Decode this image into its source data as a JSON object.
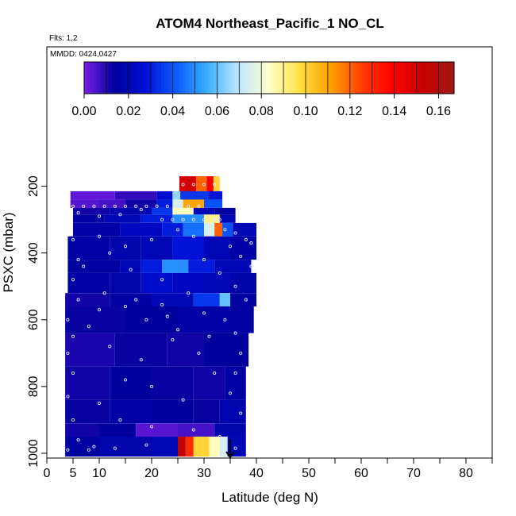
{
  "chart_data": {
    "type": "heatmap",
    "title": "ATOM4 Northeast_Pacific_1 NO_CL",
    "notes": {
      "flights": "Flts: 1,2",
      "dates": "MMDD: 0424,0427"
    },
    "xlabel": "Latitude (deg N)",
    "ylabel": "PSXC (mbar)",
    "xlim": [
      0,
      85
    ],
    "ylim": [
      1010,
      50
    ],
    "y_reversed": true,
    "x_ticks": [
      0,
      5,
      10,
      20,
      30,
      40,
      50,
      60,
      70,
      80
    ],
    "x_tick_labels": [
      "0",
      "5",
      "10",
      "20",
      "30",
      "40",
      "50",
      "60",
      "70",
      "80"
    ],
    "x_minor_ticks": [
      15,
      25,
      35,
      45,
      55,
      65,
      75,
      85
    ],
    "y_ticks": [
      200,
      400,
      600,
      800,
      1000
    ],
    "y_tick_labels": [
      "200",
      "400",
      "600",
      "800",
      "1000"
    ],
    "grid": false,
    "legend": "colorbar-top",
    "colorbar": {
      "min": 0,
      "max": 0.167,
      "ticks": [
        0,
        0.02,
        0.04,
        0.06,
        0.08,
        0.1,
        0.12,
        0.14,
        0.16
      ],
      "tick_labels": [
        "0.00",
        "0.02",
        "0.04",
        "0.06",
        "0.08",
        "0.10",
        "0.12",
        "0.14",
        "0.16"
      ],
      "colors": [
        "#7a1ee6",
        "#00009c",
        "#0010d8",
        "#0a5cff",
        "#3ab0ff",
        "#bfe6ff",
        "#ffffcc",
        "#ffe040",
        "#ffa000",
        "#ff4000",
        "#ff0000",
        "#c80000",
        "#a01818"
      ]
    },
    "bands": [
      {
        "p_top": 170,
        "p_bot": 240,
        "cells": [
          [
            25.3,
            28.5,
            0.15
          ],
          [
            28.5,
            30.5,
            0.12
          ],
          [
            30.5,
            31.8,
            0.14
          ],
          [
            31.8,
            33,
            0.1
          ]
        ]
      },
      {
        "p_top": 240,
        "p_bot": 240,
        "cells": []
      },
      {
        "p_top": 215,
        "p_bot": 240,
        "cells": [
          [
            4.5,
            13,
            0.003
          ],
          [
            13,
            21,
            0.008
          ],
          [
            21,
            24,
            0.025
          ],
          [
            24,
            25.5,
            0.065
          ],
          [
            25.5,
            31,
            0.035
          ],
          [
            31,
            33.5,
            0.028
          ]
        ]
      },
      {
        "p_top": 240,
        "p_bot": 265,
        "cells": [
          [
            4.5,
            10,
            0.004
          ],
          [
            10,
            15,
            0.006
          ],
          [
            15,
            21,
            0.012
          ],
          [
            21,
            24,
            0.03
          ],
          [
            24,
            26,
            0.075
          ],
          [
            26,
            30,
            0.11
          ],
          [
            30,
            33.5,
            0.04
          ]
        ]
      },
      {
        "p_top": 265,
        "p_bot": 285,
        "cells": [
          [
            5,
            12,
            0.012
          ],
          [
            12,
            20,
            0.018
          ],
          [
            20,
            24,
            0.035
          ],
          [
            24,
            28,
            0.085
          ],
          [
            28,
            32,
            0.02
          ],
          [
            32,
            36,
            0.015
          ]
        ]
      },
      {
        "p_top": 285,
        "p_bot": 310,
        "cells": [
          [
            5,
            11,
            0.015
          ],
          [
            11,
            18,
            0.02
          ],
          [
            18,
            24,
            0.03
          ],
          [
            24,
            30,
            0.05
          ],
          [
            30,
            33,
            0.09
          ],
          [
            33,
            36,
            0.02
          ]
        ]
      },
      {
        "p_top": 310,
        "p_bot": 350,
        "cells": [
          [
            5,
            14,
            0.016
          ],
          [
            14,
            22,
            0.022
          ],
          [
            22,
            26,
            0.03
          ],
          [
            26,
            30,
            0.045
          ],
          [
            30,
            32,
            0.075
          ],
          [
            32,
            33.5,
            0.12
          ],
          [
            33.5,
            35.5,
            0.04
          ],
          [
            35.5,
            40,
            0.02
          ]
        ]
      },
      {
        "p_top": 350,
        "p_bot": 420,
        "cells": [
          [
            4,
            12,
            0.016
          ],
          [
            12,
            18,
            0.018
          ],
          [
            18,
            24,
            0.02
          ],
          [
            24,
            30,
            0.028
          ],
          [
            30,
            35,
            0.02
          ],
          [
            35,
            40,
            0.016
          ]
        ]
      },
      {
        "p_top": 420,
        "p_bot": 460,
        "cells": [
          [
            4,
            14,
            0.015
          ],
          [
            14,
            18,
            0.02
          ],
          [
            18,
            22,
            0.03
          ],
          [
            22,
            27,
            0.05
          ],
          [
            27,
            32,
            0.03
          ],
          [
            32,
            39,
            0.02
          ]
        ]
      },
      {
        "p_top": 460,
        "p_bot": 520,
        "cells": [
          [
            4,
            12,
            0.016
          ],
          [
            12,
            18,
            0.018
          ],
          [
            18,
            24,
            0.025
          ],
          [
            24,
            30,
            0.022
          ],
          [
            30,
            35,
            0.02
          ],
          [
            35,
            40,
            0.017
          ]
        ]
      },
      {
        "p_top": 520,
        "p_bot": 560,
        "cells": [
          [
            3.5,
            12,
            0.012
          ],
          [
            12,
            20,
            0.015
          ],
          [
            20,
            28,
            0.02
          ],
          [
            28,
            33,
            0.035
          ],
          [
            33,
            35,
            0.06
          ],
          [
            35,
            40,
            0.015
          ]
        ]
      },
      {
        "p_top": 560,
        "p_bot": 640,
        "cells": [
          [
            3.5,
            15,
            0.013
          ],
          [
            15,
            25,
            0.014
          ],
          [
            25,
            35,
            0.016
          ],
          [
            35,
            39.5,
            0.015
          ]
        ]
      },
      {
        "p_top": 640,
        "p_bot": 740,
        "cells": [
          [
            3.5,
            13,
            0.011
          ],
          [
            13,
            23,
            0.013
          ],
          [
            23,
            30,
            0.012
          ],
          [
            30,
            38.5,
            0.014
          ]
        ]
      },
      {
        "p_top": 740,
        "p_bot": 840,
        "cells": [
          [
            3.5,
            12,
            0.012
          ],
          [
            12,
            20,
            0.014
          ],
          [
            20,
            28,
            0.013
          ],
          [
            28,
            34,
            0.012
          ],
          [
            34,
            38,
            0.016
          ]
        ]
      },
      {
        "p_top": 840,
        "p_bot": 910,
        "cells": [
          [
            3.5,
            12,
            0.013
          ],
          [
            12,
            20,
            0.016
          ],
          [
            20,
            28,
            0.014
          ],
          [
            28,
            33,
            0.013
          ],
          [
            33,
            38,
            0.018
          ]
        ]
      },
      {
        "p_top": 910,
        "p_bot": 950,
        "cells": [
          [
            3.5,
            10,
            0.012
          ],
          [
            10,
            17,
            0.014
          ],
          [
            17,
            25,
            0.004
          ],
          [
            25,
            32,
            0.006
          ],
          [
            32,
            38,
            0.018
          ]
        ]
      },
      {
        "p_top": 950,
        "p_bot": 1010,
        "cells": [
          [
            3.5,
            10,
            0.015
          ],
          [
            10,
            20,
            0.018
          ],
          [
            20,
            25,
            0.02
          ],
          [
            25,
            26.5,
            0.155
          ],
          [
            26.5,
            28,
            0.13
          ],
          [
            28,
            31,
            0.1
          ],
          [
            31,
            33,
            0.085
          ],
          [
            33,
            34.5,
            0.075
          ],
          [
            34.5,
            38,
            0.02
          ]
        ]
      }
    ],
    "samples": [
      [
        26,
        195
      ],
      [
        28,
        195
      ],
      [
        30,
        195
      ],
      [
        32,
        195
      ],
      [
        5,
        260
      ],
      [
        7,
        260
      ],
      [
        9,
        260
      ],
      [
        11,
        260
      ],
      [
        13,
        260
      ],
      [
        15,
        260
      ],
      [
        17,
        260
      ],
      [
        19,
        260
      ],
      [
        21,
        260
      ],
      [
        23,
        260
      ],
      [
        25,
        260
      ],
      [
        27,
        260
      ],
      [
        29,
        260
      ],
      [
        22,
        300
      ],
      [
        24,
        300
      ],
      [
        26,
        300
      ],
      [
        28,
        300
      ],
      [
        30,
        300
      ],
      [
        32,
        300
      ],
      [
        33,
        300
      ],
      [
        6,
        280
      ],
      [
        10,
        290
      ],
      [
        14,
        285
      ],
      [
        18,
        270
      ],
      [
        34,
        330
      ],
      [
        36,
        340
      ],
      [
        38,
        360
      ],
      [
        39,
        370
      ],
      [
        35,
        380
      ],
      [
        37,
        410
      ],
      [
        39,
        440
      ],
      [
        5,
        360
      ],
      [
        6,
        420
      ],
      [
        5,
        480
      ],
      [
        6,
        540
      ],
      [
        4,
        600
      ],
      [
        5,
        650
      ],
      [
        4,
        700
      ],
      [
        5,
        760
      ],
      [
        4,
        830
      ],
      [
        5,
        900
      ],
      [
        6,
        960
      ],
      [
        10,
        350
      ],
      [
        12,
        400
      ],
      [
        15,
        380
      ],
      [
        20,
        360
      ],
      [
        25,
        330
      ],
      [
        28,
        350
      ],
      [
        30,
        420
      ],
      [
        33,
        460
      ],
      [
        36,
        500
      ],
      [
        38,
        540
      ],
      [
        10,
        570
      ],
      [
        15,
        560
      ],
      [
        22,
        555
      ],
      [
        30,
        580
      ],
      [
        34,
        600
      ],
      [
        36,
        640
      ],
      [
        37,
        700
      ],
      [
        36,
        760
      ],
      [
        35,
        820
      ],
      [
        37,
        880
      ],
      [
        8,
        620
      ],
      [
        12,
        680
      ],
      [
        18,
        720
      ],
      [
        24,
        660
      ],
      [
        29,
        700
      ],
      [
        32,
        760
      ],
      [
        15,
        780
      ],
      [
        20,
        800
      ],
      [
        26,
        840
      ],
      [
        10,
        850
      ],
      [
        14,
        900
      ],
      [
        20,
        920
      ],
      [
        28,
        930
      ],
      [
        33,
        950
      ],
      [
        9,
        980
      ],
      [
        8,
        990
      ],
      [
        13,
        985
      ],
      [
        19,
        975
      ],
      [
        4,
        990
      ],
      [
        36,
        985
      ],
      [
        16,
        450
      ],
      [
        22,
        480
      ],
      [
        27,
        520
      ],
      [
        19,
        600
      ],
      [
        25,
        630
      ],
      [
        31,
        650
      ],
      [
        7,
        440
      ],
      [
        11,
        520
      ],
      [
        17,
        540
      ],
      [
        23,
        590
      ]
    ],
    "marker": {
      "x": 35,
      "y": 1000,
      "label": "arrow"
    }
  }
}
